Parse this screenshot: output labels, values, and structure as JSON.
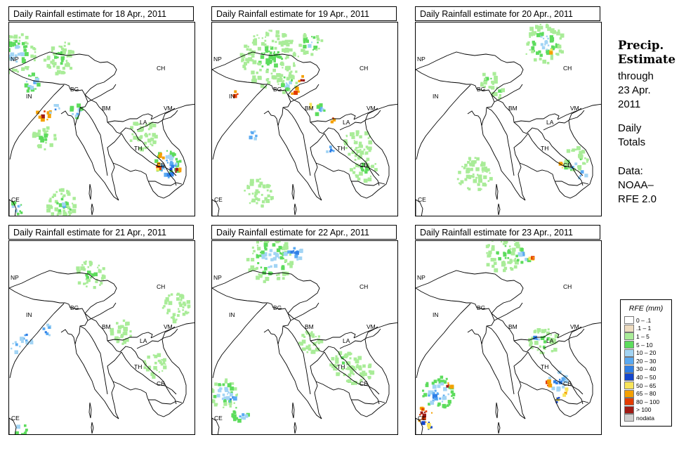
{
  "side_panel": {
    "title_line1": "Precip.",
    "title_line2": "Estimate",
    "through": "through",
    "date_line1": "23 Apr.",
    "date_line2": "2011",
    "daily1": "Daily",
    "daily2": "Totals",
    "data1": "Data:",
    "data2": "NOAA–",
    "data3": "RFE 2.0"
  },
  "country_codes": [
    "NP",
    "IN",
    "BG",
    "CH",
    "BM",
    "VM",
    "LA",
    "TH",
    "CB",
    "CE"
  ],
  "legend": {
    "title": "RFE (mm)",
    "items": [
      {
        "label": "0 – .1",
        "color": "#ffffff"
      },
      {
        "label": ".1 – 1",
        "color": "#eedcc0"
      },
      {
        "label": "1 – 5",
        "color": "#a9ec98"
      },
      {
        "label": "5 – 10",
        "color": "#5ddc5d"
      },
      {
        "label": "10 – 20",
        "color": "#a2d4f4"
      },
      {
        "label": "20 – 30",
        "color": "#5aaaf2"
      },
      {
        "label": "30 – 40",
        "color": "#2f7fe6"
      },
      {
        "label": "40 – 50",
        "color": "#1446cc"
      },
      {
        "label": "50 – 65",
        "color": "#f8e45a"
      },
      {
        "label": "65 – 80",
        "color": "#f4a000"
      },
      {
        "label": "80 – 100",
        "color": "#e43c00"
      },
      {
        "label": "> 100",
        "color": "#a01a14"
      },
      {
        "label": "nodata",
        "color": "#cfcfcf"
      }
    ]
  },
  "chart_data": [
    {
      "type": "heatmap",
      "title": "Daily Rainfall estimate for  18 Apr., 2011",
      "date": "18 Apr., 2011",
      "blobs": [
        {
          "lon": 79.2,
          "lat": 31.8,
          "radius_deg": 3.5,
          "cls": 4
        },
        {
          "lon": 86.8,
          "lat": 31.2,
          "radius_deg": 2.8,
          "cls": 3
        },
        {
          "lon": 82.0,
          "lat": 27.0,
          "radius_deg": 1.6,
          "cls": 5
        },
        {
          "lon": 84.0,
          "lat": 21.8,
          "radius_deg": 1.2,
          "cls": 11
        },
        {
          "lon": 85.8,
          "lat": 22.6,
          "radius_deg": 1.0,
          "cls": 6
        },
        {
          "lon": 89.5,
          "lat": 22.3,
          "radius_deg": 1.2,
          "cls": 5
        },
        {
          "lon": 84.0,
          "lat": 18.0,
          "radius_deg": 2.0,
          "cls": 3
        },
        {
          "lon": 101.0,
          "lat": 18.5,
          "radius_deg": 2.5,
          "cls": 2
        },
        {
          "lon": 105.2,
          "lat": 13.8,
          "radius_deg": 2.2,
          "cls": 5
        },
        {
          "lon": 105.5,
          "lat": 12.8,
          "radius_deg": 1.4,
          "cls": 7
        },
        {
          "lon": 106.6,
          "lat": 12.6,
          "radius_deg": 0.8,
          "cls": 11
        },
        {
          "lon": 103.7,
          "lat": 13.3,
          "radius_deg": 0.7,
          "cls": 10
        },
        {
          "lon": 104.2,
          "lat": 15.0,
          "radius_deg": 0.5,
          "cls": 11
        },
        {
          "lon": 87.0,
          "lat": 7.0,
          "radius_deg": 2.6,
          "cls": 3
        },
        {
          "lon": 87.5,
          "lat": 6.5,
          "radius_deg": 1.0,
          "cls": 5
        },
        {
          "lon": 79.3,
          "lat": 6.5,
          "radius_deg": 1.2,
          "cls": 5
        }
      ]
    },
    {
      "type": "heatmap",
      "title": "Daily Rainfall estimate for  19 Apr., 2011",
      "date": "19 Apr., 2011",
      "blobs": [
        {
          "lon": 88.0,
          "lat": 31.0,
          "radius_deg": 5.0,
          "cls": 3
        },
        {
          "lon": 95.0,
          "lat": 33.5,
          "radius_deg": 2.0,
          "cls": 4
        },
        {
          "lon": 91.0,
          "lat": 27.0,
          "radius_deg": 1.8,
          "cls": 4
        },
        {
          "lon": 93.5,
          "lat": 27.5,
          "radius_deg": 0.8,
          "cls": 11
        },
        {
          "lon": 92.2,
          "lat": 25.7,
          "radius_deg": 0.7,
          "cls": 11
        },
        {
          "lon": 82.0,
          "lat": 25.2,
          "radius_deg": 0.6,
          "cls": 11
        },
        {
          "lon": 95.5,
          "lat": 23.5,
          "radius_deg": 0.8,
          "cls": 10
        },
        {
          "lon": 96.5,
          "lat": 22.5,
          "radius_deg": 1.0,
          "cls": 5
        },
        {
          "lon": 98.5,
          "lat": 21.2,
          "radius_deg": 0.6,
          "cls": 11
        },
        {
          "lon": 98.3,
          "lat": 16.0,
          "radius_deg": 0.9,
          "cls": 6
        },
        {
          "lon": 85.0,
          "lat": 18.5,
          "radius_deg": 0.9,
          "cls": 6
        },
        {
          "lon": 104.0,
          "lat": 13.0,
          "radius_deg": 2.2,
          "cls": 3
        },
        {
          "lon": 103.0,
          "lat": 17.0,
          "radius_deg": 2.5,
          "cls": 2
        },
        {
          "lon": 86.0,
          "lat": 9.0,
          "radius_deg": 2.5,
          "cls": 2
        }
      ]
    },
    {
      "type": "heatmap",
      "title": "Daily Rainfall estimate for  20 Apr., 2011",
      "date": "20 Apr., 2011",
      "blobs": [
        {
          "lon": 100.0,
          "lat": 33.5,
          "radius_deg": 3.5,
          "cls": 4
        },
        {
          "lon": 101.5,
          "lat": 32.0,
          "radius_deg": 0.6,
          "cls": 10
        },
        {
          "lon": 90.5,
          "lat": 27.5,
          "radius_deg": 1.5,
          "cls": 3
        },
        {
          "lon": 92.2,
          "lat": 25.5,
          "radius_deg": 1.3,
          "cls": 3
        },
        {
          "lon": 104.8,
          "lat": 13.5,
          "radius_deg": 1.2,
          "cls": 5
        },
        {
          "lon": 103.0,
          "lat": 13.5,
          "radius_deg": 0.5,
          "cls": 10
        },
        {
          "lon": 106.5,
          "lat": 12.0,
          "radius_deg": 0.8,
          "cls": 6
        },
        {
          "lon": 105.5,
          "lat": 14.5,
          "radius_deg": 2.0,
          "cls": 3
        },
        {
          "lon": 88.0,
          "lat": 12.0,
          "radius_deg": 3.0,
          "cls": 2
        }
      ]
    },
    {
      "type": "heatmap",
      "title": "Daily Rainfall estimate for  21 Apr., 2011",
      "date": "21 Apr., 2011",
      "blobs": [
        {
          "lon": 92.0,
          "lat": 31.5,
          "radius_deg": 2.5,
          "cls": 3
        },
        {
          "lon": 84.5,
          "lat": 22.3,
          "radius_deg": 1.0,
          "cls": 6
        },
        {
          "lon": 81.2,
          "lat": 21.2,
          "radius_deg": 1.2,
          "cls": 6
        },
        {
          "lon": 79.0,
          "lat": 19.5,
          "radius_deg": 0.9,
          "cls": 6
        },
        {
          "lon": 97.5,
          "lat": 22.0,
          "radius_deg": 2.0,
          "cls": 2
        },
        {
          "lon": 103.0,
          "lat": 16.5,
          "radius_deg": 2.0,
          "cls": 2
        },
        {
          "lon": 106.5,
          "lat": 26.0,
          "radius_deg": 2.5,
          "cls": 2
        },
        {
          "lon": 80.0,
          "lat": 6.0,
          "radius_deg": 1.0,
          "cls": 5
        }
      ]
    },
    {
      "type": "heatmap",
      "title": "Daily Rainfall estimate for  22 Apr., 2011",
      "date": "22 Apr., 2011",
      "blobs": [
        {
          "lon": 88.0,
          "lat": 34.0,
          "radius_deg": 4.0,
          "cls": 4
        },
        {
          "lon": 92.0,
          "lat": 35.0,
          "radius_deg": 1.5,
          "cls": 6
        },
        {
          "lon": 80.0,
          "lat": 12.0,
          "radius_deg": 2.6,
          "cls": 4
        },
        {
          "lon": 81.5,
          "lat": 11.0,
          "radius_deg": 1.0,
          "cls": 6
        },
        {
          "lon": 83.0,
          "lat": 8.5,
          "radius_deg": 1.5,
          "cls": 5
        },
        {
          "lon": 100.5,
          "lat": 17.0,
          "radius_deg": 2.2,
          "cls": 3
        },
        {
          "lon": 103.0,
          "lat": 15.5,
          "radius_deg": 2.5,
          "cls": 2
        },
        {
          "lon": 95.0,
          "lat": 20.5,
          "radius_deg": 2.0,
          "cls": 2
        }
      ]
    },
    {
      "type": "heatmap",
      "title": "Daily Rainfall estimate for  23 Apr., 2011",
      "date": "23 Apr., 2011",
      "blobs": [
        {
          "lon": 93.0,
          "lat": 35.0,
          "radius_deg": 3.5,
          "cls": 3
        },
        {
          "lon": 96.5,
          "lat": 34.5,
          "radius_deg": 1.3,
          "cls": 5
        },
        {
          "lon": 98.0,
          "lat": 34.2,
          "radius_deg": 0.4,
          "cls": 10
        },
        {
          "lon": 100.0,
          "lat": 20.5,
          "radius_deg": 2.5,
          "cls": 3
        },
        {
          "lon": 98.5,
          "lat": 21.0,
          "radius_deg": 0.8,
          "cls": 6
        },
        {
          "lon": 102.5,
          "lat": 14.0,
          "radius_deg": 1.7,
          "cls": 6
        },
        {
          "lon": 100.7,
          "lat": 13.5,
          "radius_deg": 0.6,
          "cls": 11
        },
        {
          "lon": 103.5,
          "lat": 12.2,
          "radius_deg": 0.6,
          "cls": 10
        },
        {
          "lon": 102.5,
          "lat": 10.8,
          "radius_deg": 0.5,
          "cls": 9
        },
        {
          "lon": 82.0,
          "lat": 12.0,
          "radius_deg": 2.8,
          "cls": 5
        },
        {
          "lon": 81.0,
          "lat": 11.5,
          "radius_deg": 1.2,
          "cls": 6
        },
        {
          "lon": 83.5,
          "lat": 13.0,
          "radius_deg": 0.8,
          "cls": 11
        },
        {
          "lon": 79.5,
          "lat": 8.5,
          "radius_deg": 1.4,
          "cls": 11
        },
        {
          "lon": 79.7,
          "lat": 6.5,
          "radius_deg": 1.0,
          "cls": 9
        }
      ]
    }
  ]
}
